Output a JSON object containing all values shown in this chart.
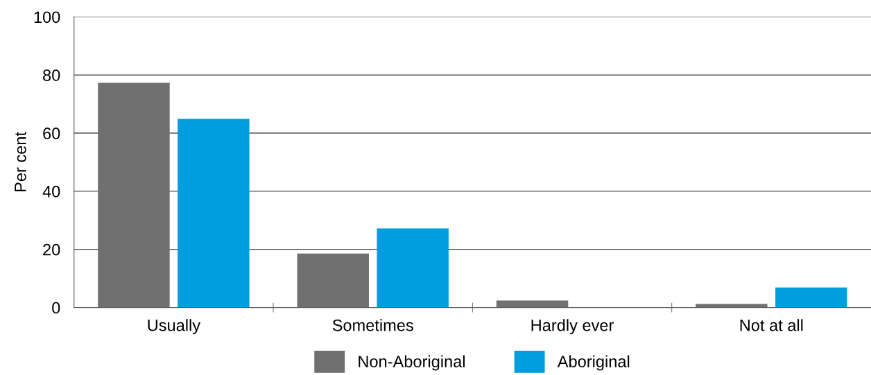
{
  "chart_data": {
    "type": "bar",
    "ylabel": "Per cent",
    "categories": [
      "Usually",
      "Sometimes",
      "Hardly ever",
      "Not at all"
    ],
    "series": [
      {
        "name": "Non-Aboriginal",
        "color": "#707070",
        "values": [
          77.3,
          18.6,
          2.4,
          1.2
        ]
      },
      {
        "name": "Aboriginal",
        "color": "#009ddf",
        "values": [
          64.9,
          27.2,
          0,
          6.9
        ]
      }
    ],
    "ylim": [
      0,
      100
    ],
    "yticks": [
      0,
      20,
      40,
      60,
      80,
      100
    ],
    "grid": "y",
    "legend": "bottom"
  }
}
